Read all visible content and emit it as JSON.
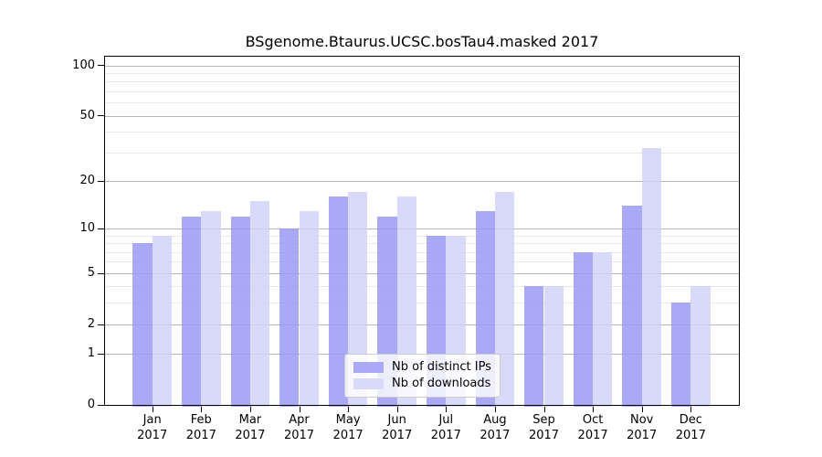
{
  "chart_data": {
    "type": "bar",
    "title": "BSgenome.Btaurus.UCSC.bosTau4.masked 2017",
    "categories": [
      "Jan 2017",
      "Feb 2017",
      "Mar 2017",
      "Apr 2017",
      "May 2017",
      "Jun 2017",
      "Jul 2017",
      "Aug 2017",
      "Sep 2017",
      "Oct 2017",
      "Nov 2017",
      "Dec 2017"
    ],
    "x_months": [
      "Jan",
      "Feb",
      "Mar",
      "Apr",
      "May",
      "Jun",
      "Jul",
      "Aug",
      "Sep",
      "Oct",
      "Nov",
      "Dec"
    ],
    "x_year": "2017",
    "series": [
      {
        "name": "Nb of distinct IPs",
        "values": [
          8,
          12,
          12,
          10,
          16,
          12,
          9,
          13,
          4,
          7,
          14,
          3
        ]
      },
      {
        "name": "Nb of downloads",
        "values": [
          9,
          13,
          15,
          13,
          17,
          16,
          9,
          17,
          4,
          7,
          32,
          4
        ]
      }
    ],
    "yscale": "log1p",
    "ylim": [
      0,
      114
    ],
    "y_ticks": [
      100,
      50,
      20,
      10,
      5,
      2,
      1,
      0
    ],
    "y_minor_gridlines": [
      3,
      4,
      6,
      7,
      8,
      9,
      30,
      40,
      60,
      70,
      80,
      90
    ],
    "grid": true,
    "legend_position": "lower center"
  },
  "colors": {
    "bar_ips_fill": "rgba(150,150,243,0.82)",
    "bar_downloads_fill": "rgba(209,209,248,0.82)",
    "legend_swatch_ips": "#a9a9f5",
    "legend_swatch_downloads": "#d9d9f9",
    "grid_major": "#b6b6b6",
    "grid_minor": "#e9e9e9",
    "axis": "#000000",
    "background": "#ffffff"
  }
}
